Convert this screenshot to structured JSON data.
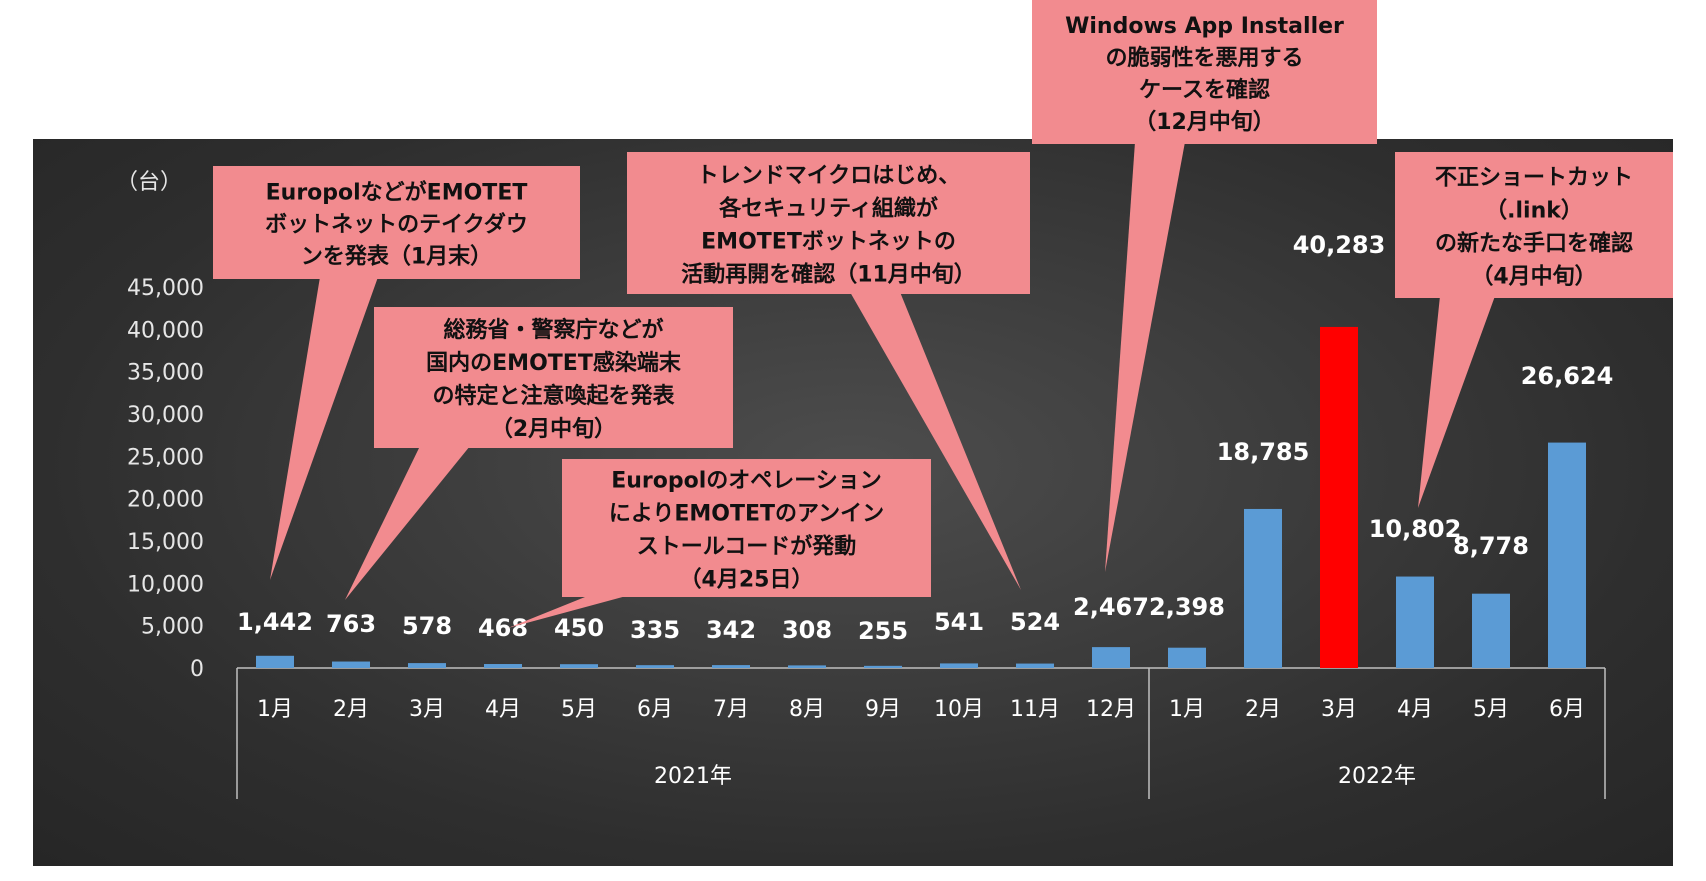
{
  "chart_data": {
    "type": "bar",
    "unit_label": "（台）",
    "y_ticks": [
      "0",
      "5,000",
      "10,000",
      "15,000",
      "20,000",
      "25,000",
      "30,000",
      "35,000",
      "40,000",
      "45,000"
    ],
    "ylim": [
      0,
      45000
    ],
    "categories": [
      "1月",
      "2月",
      "3月",
      "4月",
      "5月",
      "6月",
      "7月",
      "8月",
      "9月",
      "10月",
      "11月",
      "12月",
      "1月",
      "2月",
      "3月",
      "4月",
      "5月",
      "6月"
    ],
    "groups": [
      {
        "label": "2021年",
        "start": 0,
        "end": 11
      },
      {
        "label": "2022年",
        "start": 12,
        "end": 17
      }
    ],
    "values": [
      1442,
      763,
      578,
      468,
      450,
      335,
      342,
      308,
      255,
      541,
      524,
      2467,
      2398,
      18785,
      40283,
      10802,
      8778,
      26624
    ],
    "value_labels": [
      "1,442",
      "763",
      "578",
      "468",
      "450",
      "335",
      "342",
      "308",
      "255",
      "541",
      "524",
      "2,467",
      "2,398",
      "18,785",
      "40,283",
      "10,802",
      "8,778",
      "26,624"
    ],
    "highlight_index": 14,
    "colors": {
      "bar": "#5b9bd5",
      "highlight": "#ff0000",
      "callout": "#f28b8f"
    },
    "grid": false,
    "annotations": [
      {
        "lines": [
          "EuropolなどがEMOTET",
          "ボットネットのテイクダウ",
          "ンを発表（1月末）"
        ],
        "target": 0
      },
      {
        "lines": [
          "総務省・警察庁などが",
          "国内のEMOTET感染端末",
          "の特定と注意喚起を発表",
          "（2月中旬）"
        ],
        "target": 1
      },
      {
        "lines": [
          "Europolのオペレーション",
          "によりEMOTETのアンイン",
          "ストールコードが発動",
          "（4月25日）"
        ],
        "target": 3
      },
      {
        "lines": [
          "トレンドマイクロはじめ、",
          "各セキュリティ組織が",
          "EMOTETボットネットの",
          "活動再開を確認（11月中旬）"
        ],
        "target": 10
      },
      {
        "lines": [
          "Windows App Installer",
          "の脆弱性を悪用する",
          "ケースを確認",
          "（12月中旬）"
        ],
        "target": 11
      },
      {
        "lines": [
          "不正ショートカット",
          "（.link）",
          "の新たな手口を確認",
          "（4月中旬）"
        ],
        "target": 15
      }
    ]
  }
}
